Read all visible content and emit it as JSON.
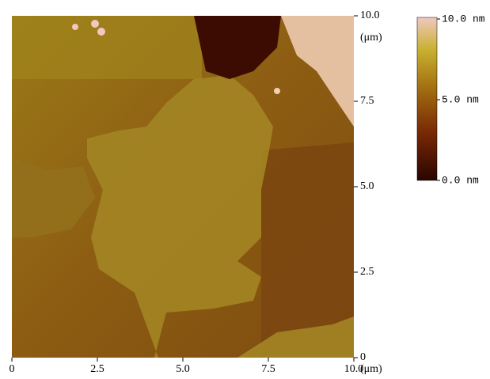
{
  "chart_data": {
    "type": "image",
    "xlim": [
      0,
      10
    ],
    "ylim": [
      0,
      10
    ],
    "xticks": [
      0,
      2.5,
      {
        "value": 5,
        "label": "5.0"
      },
      7.5,
      {
        "value": 10,
        "label": "10.0"
      }
    ],
    "yticks": [
      0,
      2.5,
      {
        "value": 5,
        "label": "5.0"
      },
      7.5,
      {
        "value": 10,
        "label": "10.0"
      }
    ],
    "x_label": "(μm)",
    "y_label": "(μm)",
    "colorbar": {
      "lim": [
        0,
        10
      ],
      "ticks": [
        {
          "value": 0,
          "label": "0.0 nm"
        },
        {
          "value": 5,
          "label": "5.0 nm"
        },
        {
          "value": 10,
          "label": "10.0 nm"
        }
      ]
    }
  }
}
